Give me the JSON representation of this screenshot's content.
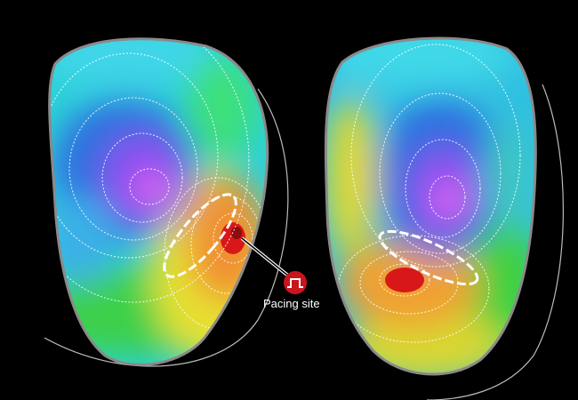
{
  "annotation": {
    "pacing_label": "Pacing site",
    "pacing_icon": "pulse-icon"
  },
  "colors": {
    "background": "#000000",
    "marker": "#c8161d",
    "outline": "#8a8a8a"
  }
}
